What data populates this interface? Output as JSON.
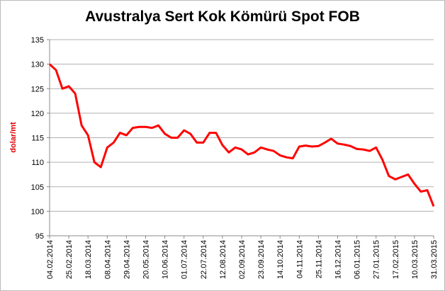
{
  "chart_data": {
    "type": "line",
    "title": "Avustralya Sert Kok Kömürü Spot FOB",
    "y_label": "dolar/mt",
    "categories": [
      "04.02.2014",
      null,
      null,
      "25.02.2014",
      null,
      null,
      "18.03.2014",
      null,
      null,
      "08.04.2014",
      null,
      null,
      "29.04.2014",
      null,
      null,
      "20.05.2014",
      null,
      null,
      "10.06.2014",
      null,
      null,
      "01.07.2014",
      null,
      null,
      "22.07.2014",
      null,
      null,
      "12.08.2014",
      null,
      null,
      "02.09.2014",
      null,
      null,
      "23.09.2014",
      null,
      null,
      "14.10.2014",
      null,
      null,
      "04.11.2014",
      null,
      null,
      "25.11.2014",
      null,
      null,
      "16.12.2014",
      null,
      null,
      "06.01.2015",
      null,
      null,
      "27.01.2015",
      null,
      null,
      "17.02.2015",
      null,
      null,
      "10.03.2015",
      null,
      null,
      "31.03.2015"
    ],
    "series": [
      {
        "name": "Avustralya Sert Kok Kömürü Spot FOB",
        "color": "#ff0000",
        "values": [
          130,
          128.8,
          125,
          125.5,
          124,
          117.5,
          115.5,
          110,
          109,
          113,
          114,
          116,
          115.5,
          117,
          117.2,
          117.2,
          117,
          117.5,
          115.8,
          115,
          115,
          116.5,
          115.8,
          114,
          114,
          116,
          116,
          113.5,
          112,
          113,
          112.6,
          111.6,
          112,
          113,
          112.6,
          112.3,
          111.4,
          111,
          110.8,
          113.2,
          113.4,
          113.2,
          113.3,
          114,
          114.8,
          113.8,
          113.6,
          113.3,
          112.7,
          112.6,
          112.3,
          113,
          110.5,
          107.2,
          106.5,
          107,
          107.5,
          105.6,
          104,
          104.3,
          101
        ]
      }
    ],
    "ylim": [
      95,
      135
    ],
    "yticks": [
      95,
      100,
      105,
      110,
      115,
      120,
      125,
      130,
      135
    ],
    "grid": true
  }
}
